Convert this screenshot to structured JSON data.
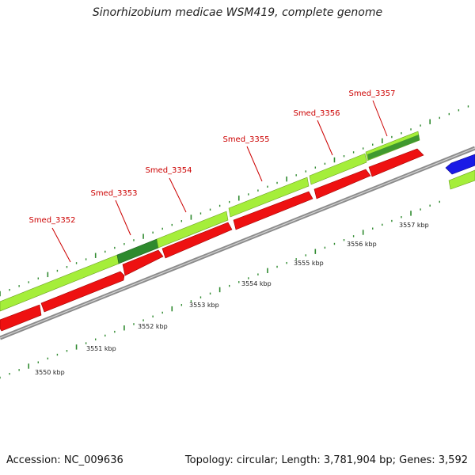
{
  "title": "Sinorhizobium medicae WSM419, complete genome",
  "footer": {
    "accession": "Accession: NC_009636",
    "summary": "Topology: circular; Length: 3,781,904 bp; Genes: 3,592"
  },
  "colors": {
    "backbone": "#8c8c8c",
    "cds_forward": "#a5ee3a",
    "cds_forward_dark": "#2e8a2e",
    "cds_reverse": "#ee1111",
    "cds_other": "#1a1ae6",
    "tick": "#2f8a2f",
    "label": "#cc0000"
  },
  "gene_labels": [
    "Smed_3352",
    "Smed_3353",
    "Smed_3354",
    "Smed_3355",
    "Smed_3356",
    "Smed_3357"
  ],
  "kbp_labels": [
    "3550 kbp",
    "3551 kbp",
    "3552 kbp",
    "3553 kbp",
    "3554 kbp",
    "3555 kbp",
    "3556 kbp",
    "3557 kbp"
  ]
}
